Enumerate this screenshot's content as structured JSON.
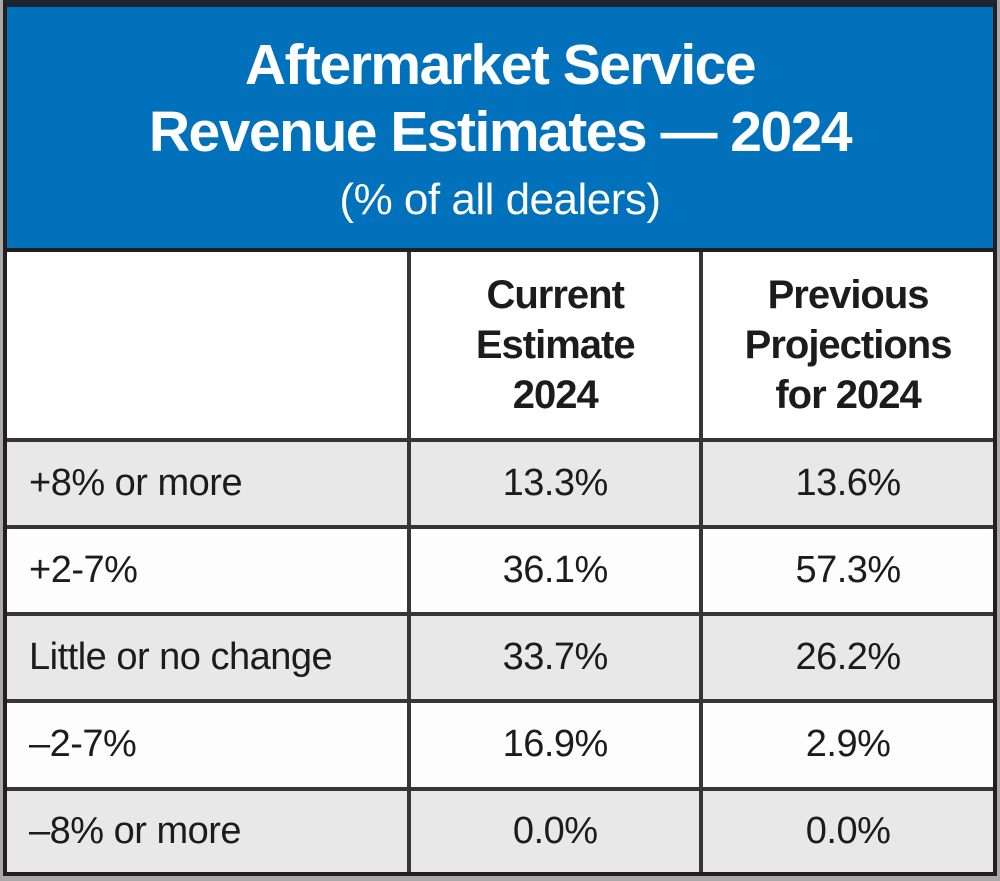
{
  "figure": {
    "title_line1": "Aftermarket Service",
    "title_line2": "Revenue Estimates — 2024",
    "subtitle": "(% of all dealers)"
  },
  "table": {
    "col_headers": {
      "row_label": "",
      "current": "Current\nEstimate\n2024",
      "previous": "Previous\nProjections\nfor 2024"
    },
    "rows": [
      {
        "label": "+8% or more",
        "current": "13.3%",
        "previous": "13.6%"
      },
      {
        "label": "+2-7%",
        "current": "36.1%",
        "previous": "57.3%"
      },
      {
        "label": "Little or no change",
        "current": "33.7%",
        "previous": "26.2%"
      },
      {
        "label": "–2-7%",
        "current": "16.9%",
        "previous": "2.9%"
      },
      {
        "label": "–8% or more",
        "current": "0.0%",
        "previous": "0.0%"
      }
    ]
  },
  "colors": {
    "header_bg": "#0071ba",
    "header_text": "#ffffff",
    "border_outer": "#231f20",
    "border_grid": "#363636",
    "row_shade": "#e8e8e9",
    "row_plain": "#fdfdfd",
    "text": "#1c1c1c"
  },
  "chart_data": {
    "type": "table",
    "title": "Aftermarket Service Revenue Estimates — 2024",
    "subtitle": "(% of all dealers)",
    "columns": [
      "",
      "Current Estimate 2024",
      "Previous Projections for 2024"
    ],
    "categories": [
      "+8% or more",
      "+2-7%",
      "Little or no change",
      "–2-7%",
      "–8% or more"
    ],
    "series": [
      {
        "name": "Current Estimate 2024",
        "values": [
          13.3,
          36.1,
          33.7,
          16.9,
          0.0
        ]
      },
      {
        "name": "Previous Projections for 2024",
        "values": [
          13.6,
          57.3,
          26.2,
          2.9,
          0.0
        ]
      }
    ],
    "units": "percent of all dealers"
  }
}
